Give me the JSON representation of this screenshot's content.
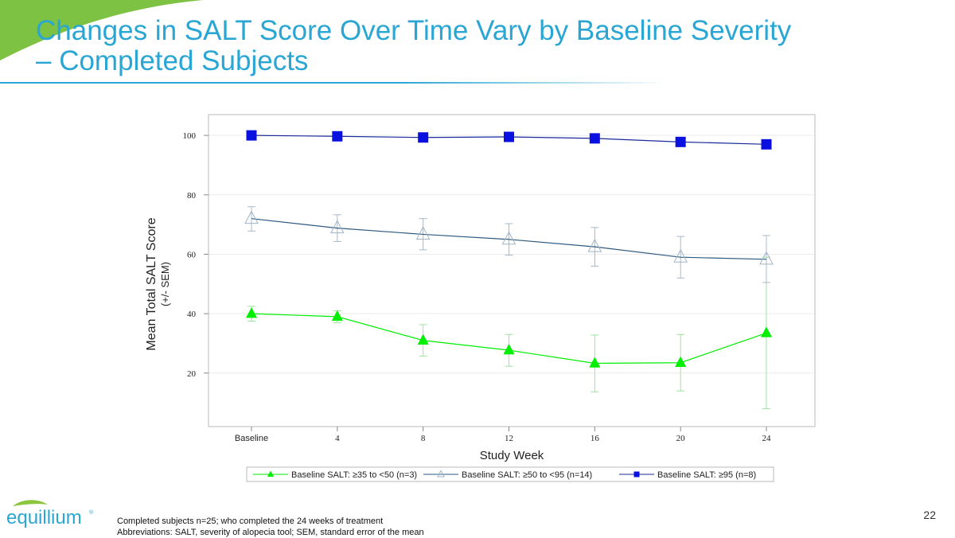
{
  "slide": {
    "title_line1": "Changes in SALT Score Over Time Vary by Baseline Severity",
    "title_line2": "– Completed Subjects",
    "footnote_line1": "Completed subjects n=25; who completed the 24 weeks of treatment",
    "footnote_line2": "Abbreviations: SALT, severity of alopecia tool; SEM, standard error of the mean",
    "page_number": "22",
    "logo_text": "equillium",
    "logo_mark": "®"
  },
  "colors": {
    "title": "#2aa6d4",
    "series_low": "#00ee00",
    "series_mid_line": "#2e5a80",
    "series_mid_marker": "#9fb4c8",
    "series_high": "#0a10e0",
    "series_high_line": "#1a2a9a",
    "logo": "#2aa6d4",
    "logo_leaf": "#8cc63f"
  },
  "chart_data": {
    "type": "line",
    "title": "",
    "xlabel": "Study Week",
    "ylabel_line1": "Mean  Total SALT  Score",
    "ylabel_line2": "(+/- SEM)",
    "categories": [
      "Baseline",
      "4",
      "8",
      "12",
      "16",
      "20",
      "24"
    ],
    "y_ticks": [
      "20",
      "40",
      "60",
      "80",
      "100"
    ],
    "ylim": [
      2,
      107
    ],
    "grid": true,
    "legend_position": "bottom",
    "series": [
      {
        "name": "Baseline SALT: ≥35 to <50 (n=3)",
        "marker": "filled-triangle",
        "values": [
          40.0,
          39.0,
          31.0,
          27.7,
          23.3,
          23.5,
          33.5
        ],
        "sem_low": [
          37.5,
          37.0,
          25.7,
          22.3,
          13.7,
          14.0,
          8.0
        ],
        "sem_high": [
          42.5,
          41.0,
          36.3,
          33.0,
          32.8,
          33.0,
          59.0
        ]
      },
      {
        "name": "Baseline SALT: ≥50 to <95 (n=14)",
        "marker": "open-triangle",
        "values": [
          72.0,
          68.8,
          66.7,
          65.0,
          62.5,
          59.0,
          58.3
        ],
        "sem_low": [
          67.8,
          64.3,
          61.5,
          59.7,
          56.0,
          52.0,
          50.5
        ],
        "sem_high": [
          76.0,
          73.3,
          72.0,
          70.3,
          69.0,
          66.0,
          66.3
        ]
      },
      {
        "name": "Baseline SALT: ≥95 (n=8)",
        "marker": "filled-square",
        "values": [
          100.0,
          99.7,
          99.3,
          99.5,
          99.0,
          97.8,
          97.0
        ],
        "sem_low": [
          99.8,
          99.5,
          99.0,
          99.2,
          98.7,
          97.4,
          96.5
        ],
        "sem_high": [
          100.2,
          99.9,
          99.6,
          99.8,
          99.3,
          98.2,
          97.5
        ]
      }
    ]
  }
}
